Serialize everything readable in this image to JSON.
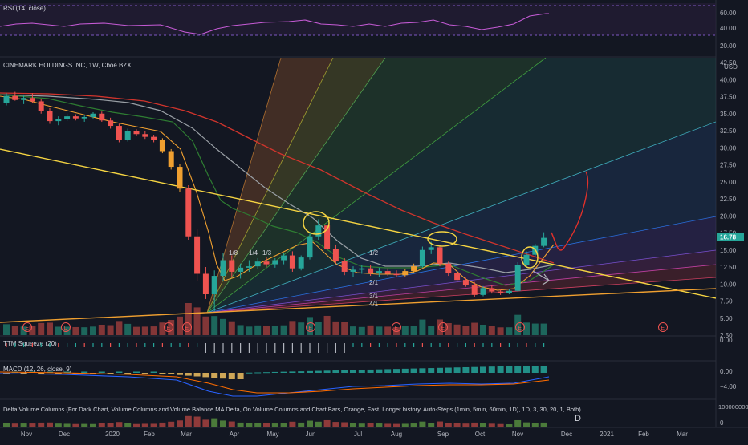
{
  "panes": {
    "rsi": {
      "title": "RSI (14, close)",
      "ticks": [
        "60.00",
        "40.00",
        "20.00"
      ],
      "levels": [
        70,
        30
      ]
    },
    "price": {
      "title": "CINEMARK HOLDINGS INC, 1W, Cboe BZX",
      "currency": "USD",
      "last_price": "16.78",
      "ticks": [
        "42.50",
        "40.00",
        "37.50",
        "35.00",
        "32.50",
        "30.00",
        "27.50",
        "25.00",
        "22.50",
        "20.00",
        "17.50",
        "15.00",
        "12.50",
        "10.00",
        "7.50",
        "5.00",
        "2.50"
      ]
    },
    "squeeze": {
      "title": "TTM Squeeze (20)",
      "ticks": [
        "0.00"
      ]
    },
    "macd": {
      "title": "MACD (12, 26, close, 9)",
      "ticks": [
        "0.00",
        "−4.00"
      ]
    },
    "delta_volume": {
      "title": "Delta Volume Columns (For Dark Chart, Volume Columns and Volume Balance MA Delta, On Volume Columns and Chart Bars, Orange, Fast, Longer history, Auto-Steps (1min, 5min, 60min, 1D), 1D, 3, 30, 20, 1, Both)",
      "ticks": [
        "100000000",
        "0"
      ]
    }
  },
  "x_axis": [
    "Nov",
    "Dec",
    "2020",
    "Feb",
    "Mar",
    "Apr",
    "May",
    "Jun",
    "Jul",
    "Aug",
    "Sep",
    "Oct",
    "Nov",
    "Dec",
    "2021",
    "Feb",
    "Mar"
  ],
  "gann_labels": [
    "1/8",
    "1/4",
    "1/3",
    "1/2",
    "2/1",
    "3/1",
    "4/1"
  ],
  "earnings_markers": [
    "E",
    "D",
    "E",
    "E",
    "E",
    "E",
    "E",
    "E",
    "E"
  ],
  "annotation_letter": "D",
  "colors": {
    "background": "#131722",
    "bull": "#26a69a",
    "bear": "#ef5350",
    "orange": "#f0a030",
    "trendline": "#f5d442",
    "rsi": "#c65bd6",
    "ma_red": "#d0342c",
    "ma_gray": "#9aa0a6",
    "ma_green": "#2e7d32",
    "macd": "#2962ff",
    "signal": "#ff6d00"
  },
  "chart_data": {
    "type": "candlestick",
    "title": "CINEMARK HOLDINGS INC, 1W, Cboe BZX",
    "ylabel": "USD",
    "ylim": [
      2.5,
      42.5
    ],
    "x_range": [
      "Nov 2019",
      "Mar 2021"
    ],
    "candles": [
      {
        "o": 36.5,
        "h": 38.0,
        "l": 36.2,
        "c": 37.6
      },
      {
        "o": 37.6,
        "h": 38.2,
        "l": 36.9,
        "c": 37.0
      },
      {
        "o": 37.0,
        "h": 37.8,
        "l": 36.4,
        "c": 37.3
      },
      {
        "o": 37.3,
        "h": 38.0,
        "l": 36.6,
        "c": 36.8
      },
      {
        "o": 36.8,
        "h": 37.2,
        "l": 35.0,
        "c": 35.4
      },
      {
        "o": 35.4,
        "h": 35.8,
        "l": 33.5,
        "c": 33.9
      },
      {
        "o": 33.9,
        "h": 34.6,
        "l": 33.3,
        "c": 34.2
      },
      {
        "o": 34.2,
        "h": 35.0,
        "l": 33.9,
        "c": 34.6
      },
      {
        "o": 34.6,
        "h": 34.9,
        "l": 34.0,
        "c": 34.3
      },
      {
        "o": 34.3,
        "h": 34.8,
        "l": 33.8,
        "c": 34.5
      },
      {
        "o": 34.5,
        "h": 35.2,
        "l": 34.3,
        "c": 35.0
      },
      {
        "o": 35.0,
        "h": 35.3,
        "l": 33.8,
        "c": 34.0
      },
      {
        "o": 34.0,
        "h": 34.4,
        "l": 32.8,
        "c": 33.2
      },
      {
        "o": 33.2,
        "h": 33.5,
        "l": 30.8,
        "c": 31.2
      },
      {
        "o": 31.2,
        "h": 32.8,
        "l": 30.9,
        "c": 32.4
      },
      {
        "o": 32.4,
        "h": 32.7,
        "l": 31.8,
        "c": 32.0
      },
      {
        "o": 32.0,
        "h": 32.4,
        "l": 31.3,
        "c": 31.6
      },
      {
        "o": 31.6,
        "h": 31.9,
        "l": 30.8,
        "c": 31.1
      },
      {
        "o": 31.1,
        "h": 31.4,
        "l": 29.2,
        "c": 29.5
      },
      {
        "o": 29.5,
        "h": 29.8,
        "l": 26.8,
        "c": 27.2
      },
      {
        "o": 27.2,
        "h": 27.6,
        "l": 23.5,
        "c": 24.0
      },
      {
        "o": 24.0,
        "h": 24.5,
        "l": 16.5,
        "c": 17.0
      },
      {
        "o": 17.0,
        "h": 18.0,
        "l": 10.5,
        "c": 11.5
      },
      {
        "o": 11.5,
        "h": 12.5,
        "l": 7.8,
        "c": 8.5
      },
      {
        "o": 8.5,
        "h": 12.0,
        "l": 6.0,
        "c": 11.2
      },
      {
        "o": 11.2,
        "h": 14.5,
        "l": 10.5,
        "c": 13.5
      },
      {
        "o": 13.5,
        "h": 14.2,
        "l": 11.0,
        "c": 11.8
      },
      {
        "o": 11.8,
        "h": 13.0,
        "l": 10.8,
        "c": 12.4
      },
      {
        "o": 12.4,
        "h": 13.5,
        "l": 11.8,
        "c": 12.6
      },
      {
        "o": 12.6,
        "h": 13.8,
        "l": 12.2,
        "c": 13.3
      },
      {
        "o": 13.3,
        "h": 14.0,
        "l": 12.5,
        "c": 12.9
      },
      {
        "o": 12.9,
        "h": 13.8,
        "l": 12.4,
        "c": 13.5
      },
      {
        "o": 13.5,
        "h": 14.6,
        "l": 12.9,
        "c": 14.2
      },
      {
        "o": 14.2,
        "h": 14.8,
        "l": 11.8,
        "c": 12.3
      },
      {
        "o": 12.3,
        "h": 14.2,
        "l": 12.0,
        "c": 13.9
      },
      {
        "o": 13.9,
        "h": 17.5,
        "l": 13.6,
        "c": 17.0
      },
      {
        "o": 17.0,
        "h": 19.5,
        "l": 16.5,
        "c": 18.6
      },
      {
        "o": 18.6,
        "h": 19.2,
        "l": 14.9,
        "c": 15.2
      },
      {
        "o": 15.2,
        "h": 15.8,
        "l": 13.0,
        "c": 13.4
      },
      {
        "o": 13.4,
        "h": 13.8,
        "l": 11.3,
        "c": 11.8
      },
      {
        "o": 11.8,
        "h": 12.6,
        "l": 11.0,
        "c": 12.1
      },
      {
        "o": 12.1,
        "h": 12.8,
        "l": 11.5,
        "c": 12.3
      },
      {
        "o": 12.3,
        "h": 12.8,
        "l": 11.2,
        "c": 11.6
      },
      {
        "o": 11.6,
        "h": 12.4,
        "l": 11.0,
        "c": 11.9
      },
      {
        "o": 11.9,
        "h": 12.3,
        "l": 11.2,
        "c": 11.5
      },
      {
        "o": 11.5,
        "h": 12.0,
        "l": 11.0,
        "c": 11.3
      },
      {
        "o": 11.3,
        "h": 12.2,
        "l": 11.1,
        "c": 11.9
      },
      {
        "o": 11.9,
        "h": 13.0,
        "l": 11.6,
        "c": 12.6
      },
      {
        "o": 12.6,
        "h": 15.5,
        "l": 12.4,
        "c": 15.0
      },
      {
        "o": 15.0,
        "h": 16.2,
        "l": 14.4,
        "c": 15.4
      },
      {
        "o": 15.4,
        "h": 15.8,
        "l": 12.6,
        "c": 13.0
      },
      {
        "o": 13.0,
        "h": 13.3,
        "l": 11.2,
        "c": 11.6
      },
      {
        "o": 11.6,
        "h": 11.9,
        "l": 10.2,
        "c": 10.6
      },
      {
        "o": 10.6,
        "h": 10.9,
        "l": 9.6,
        "c": 9.9
      },
      {
        "o": 9.9,
        "h": 10.3,
        "l": 8.1,
        "c": 8.4
      },
      {
        "o": 8.4,
        "h": 9.7,
        "l": 8.2,
        "c": 9.4
      },
      {
        "o": 9.4,
        "h": 9.8,
        "l": 8.6,
        "c": 8.9
      },
      {
        "o": 8.9,
        "h": 9.3,
        "l": 8.4,
        "c": 8.7
      },
      {
        "o": 8.7,
        "h": 9.2,
        "l": 8.5,
        "c": 9.0
      },
      {
        "o": 9.0,
        "h": 13.2,
        "l": 8.9,
        "c": 12.8
      },
      {
        "o": 12.8,
        "h": 14.8,
        "l": 12.4,
        "c": 14.3
      },
      {
        "o": 14.3,
        "h": 15.9,
        "l": 14.0,
        "c": 15.6
      },
      {
        "o": 15.6,
        "h": 17.6,
        "l": 15.4,
        "c": 16.78
      }
    ]
  }
}
